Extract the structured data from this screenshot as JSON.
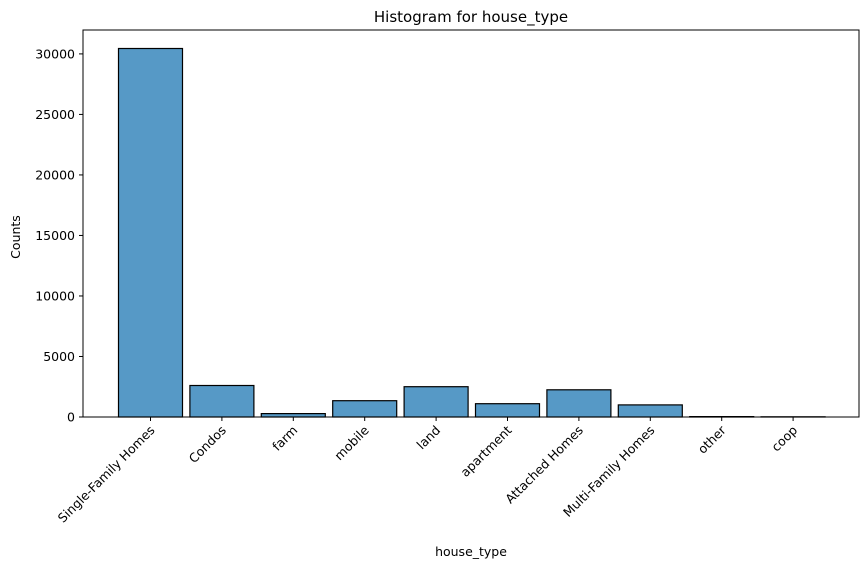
{
  "chart_data": {
    "type": "bar",
    "title": "Histogram for house_type",
    "xlabel": "house_type",
    "ylabel": "Counts",
    "categories": [
      "Single-Family Homes",
      "Condos",
      "farm",
      "mobile",
      "land",
      "apartment",
      "Attached Homes",
      "Multi-Family Homes",
      "other",
      "coop"
    ],
    "values": [
      30450,
      2600,
      280,
      1350,
      2500,
      1100,
      2250,
      1000,
      30,
      20
    ],
    "yticks": [
      0,
      5000,
      10000,
      15000,
      20000,
      25000,
      30000
    ],
    "ylim": [
      0,
      31975
    ],
    "grid": false,
    "legend": "none",
    "bar_color": "#5699c6",
    "edge_color": "#000000"
  }
}
